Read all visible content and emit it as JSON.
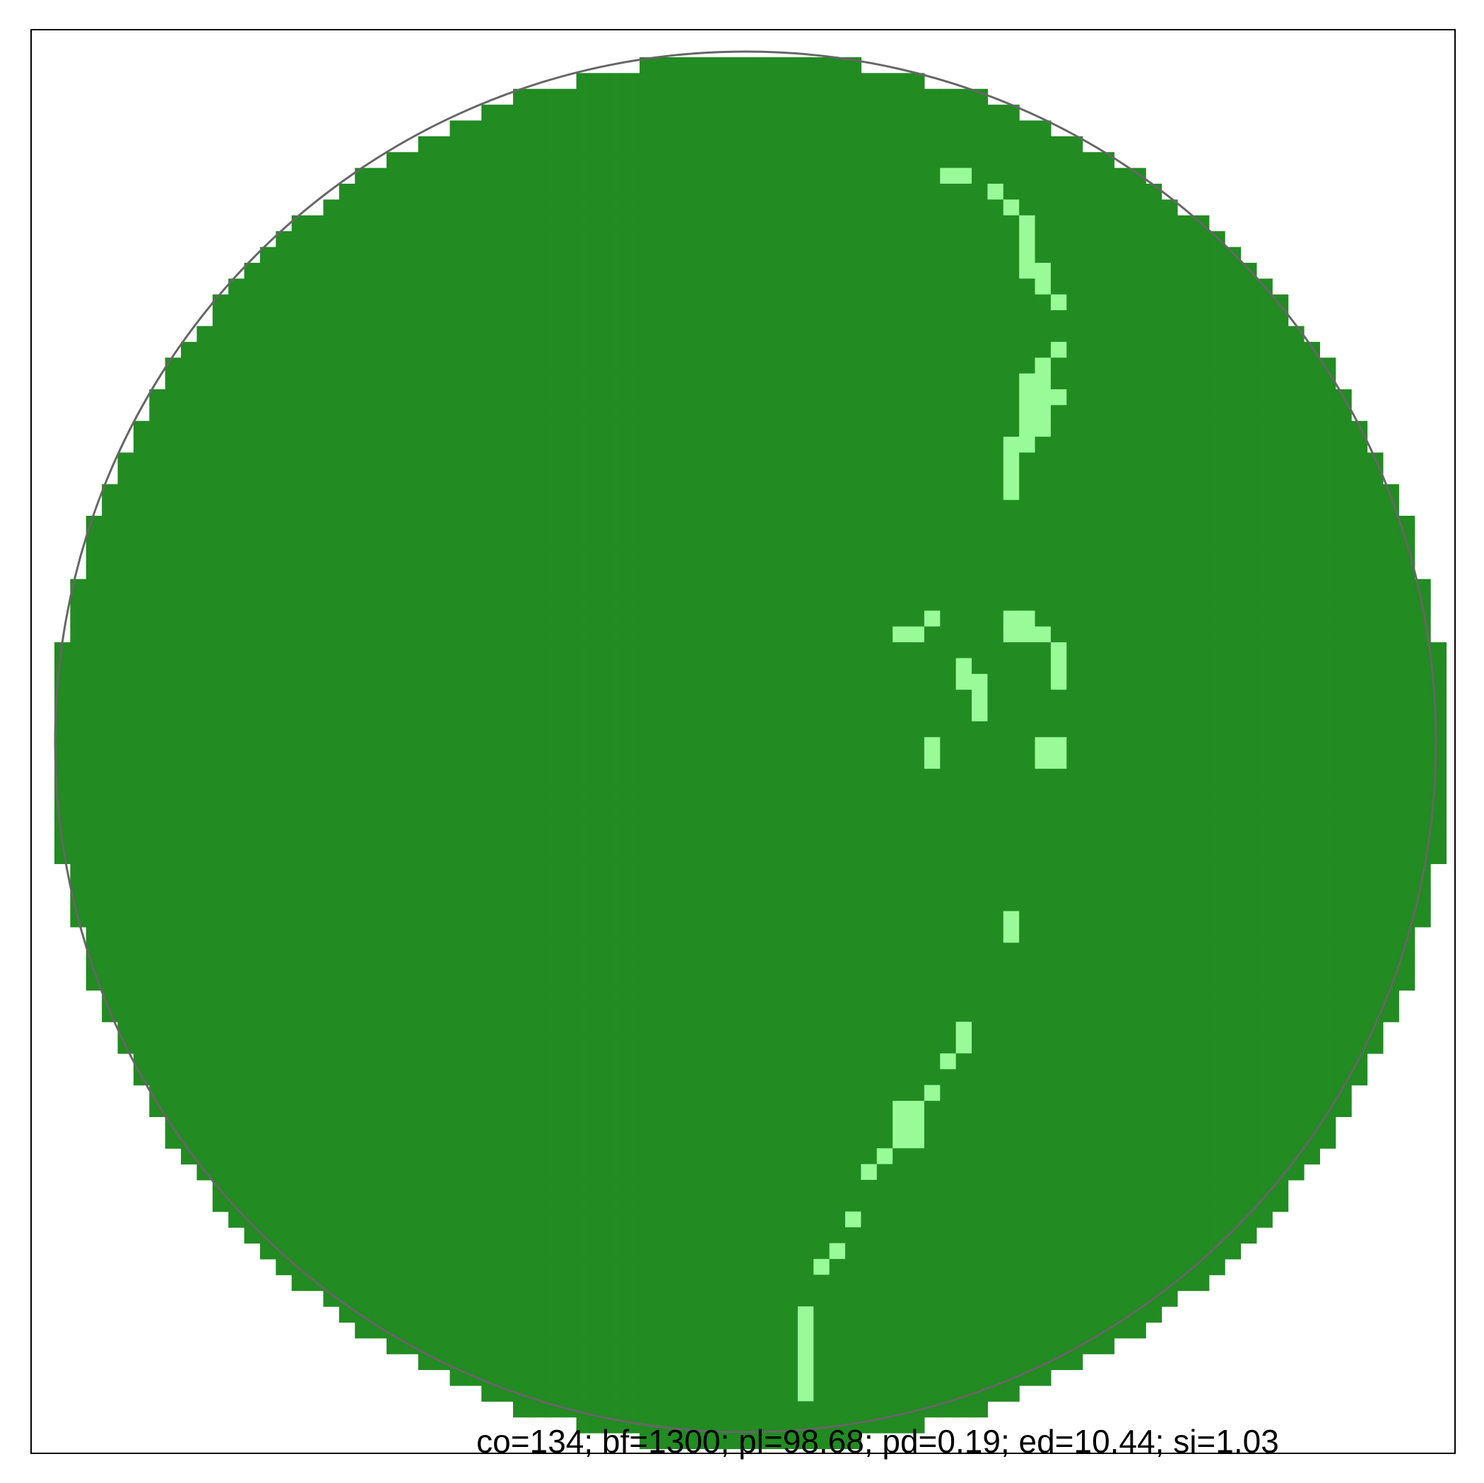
{
  "figure": {
    "metrics_line": "co=134; bf=1300; pl=98.68; pd=0.19; ed=10.44; si=1.03"
  },
  "colors": {
    "background": "#ffffff",
    "frame": "#000000",
    "ring": "#666666",
    "primary_fill": "#228b22",
    "secondary_fill": "#98fb98",
    "text": "#000000"
  },
  "grid": {
    "rows": 88,
    "cols": 88,
    "light_cells": [
      [
        7,
        56
      ],
      [
        7,
        57
      ],
      [
        8,
        59
      ],
      [
        9,
        60
      ],
      [
        10,
        61
      ],
      [
        11,
        61
      ],
      [
        12,
        61
      ],
      [
        13,
        61
      ],
      [
        13,
        62
      ],
      [
        14,
        62
      ],
      [
        15,
        63
      ],
      [
        18,
        63
      ],
      [
        19,
        62
      ],
      [
        20,
        61
      ],
      [
        20,
        62
      ],
      [
        21,
        61
      ],
      [
        21,
        62
      ],
      [
        21,
        63
      ],
      [
        22,
        61
      ],
      [
        22,
        62
      ],
      [
        23,
        61
      ],
      [
        23,
        62
      ],
      [
        24,
        60
      ],
      [
        24,
        61
      ],
      [
        25,
        60
      ],
      [
        26,
        60
      ],
      [
        27,
        60
      ],
      [
        35,
        55
      ],
      [
        36,
        53
      ],
      [
        36,
        54
      ],
      [
        35,
        60
      ],
      [
        35,
        61
      ],
      [
        36,
        60
      ],
      [
        36,
        61
      ],
      [
        36,
        62
      ],
      [
        37,
        63
      ],
      [
        38,
        57
      ],
      [
        38,
        63
      ],
      [
        39,
        57
      ],
      [
        39,
        58
      ],
      [
        39,
        63
      ],
      [
        40,
        58
      ],
      [
        41,
        58
      ],
      [
        43,
        55
      ],
      [
        44,
        55
      ],
      [
        43,
        62
      ],
      [
        43,
        63
      ],
      [
        44,
        62
      ],
      [
        44,
        63
      ],
      [
        54,
        60
      ],
      [
        55,
        60
      ],
      [
        61,
        57
      ],
      [
        62,
        57
      ],
      [
        63,
        56
      ],
      [
        65,
        55
      ],
      [
        66,
        53
      ],
      [
        66,
        54
      ],
      [
        67,
        53
      ],
      [
        67,
        54
      ],
      [
        68,
        53
      ],
      [
        68,
        54
      ],
      [
        69,
        52
      ],
      [
        70,
        51
      ],
      [
        73,
        50
      ],
      [
        75,
        49
      ],
      [
        76,
        48
      ],
      [
        79,
        47
      ],
      [
        80,
        47
      ],
      [
        81,
        47
      ],
      [
        82,
        47
      ],
      [
        83,
        47
      ],
      [
        84,
        47
      ]
    ]
  }
}
